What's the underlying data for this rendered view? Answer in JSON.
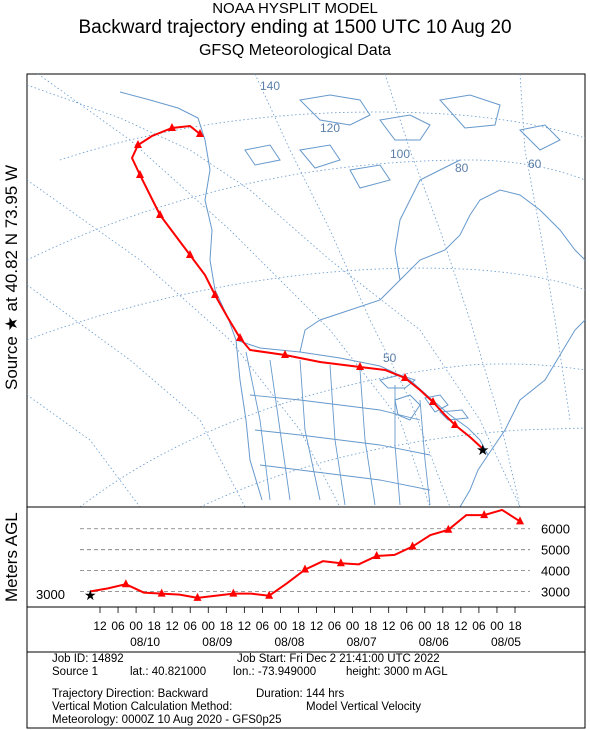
{
  "header": {
    "line1": "NOAA HYSPLIT MODEL",
    "line2": "Backward trajectory ending at 1500 UTC 10 Aug 20",
    "line3": "GFSQ Meteorological Data"
  },
  "side_label": "Source ★ at   40.82 N    73.95 W",
  "height_axis_label": "Meters AGL",
  "colors": {
    "trajectory": "#ff0000",
    "map_lines": "#6699cc",
    "grid": "#6699cc"
  },
  "map": {
    "lon_labels": [
      "140",
      "120",
      "100",
      "80",
      "60"
    ],
    "lat_labels": [
      "50"
    ]
  },
  "chart_data": {
    "type": "line",
    "title": "Backward trajectory ending at 1500 UTC 10 Aug 20",
    "ylabel": "Meters AGL",
    "x_ticks": [
      "12",
      "06",
      "00",
      "18",
      "12",
      "06",
      "00",
      "18",
      "12",
      "06",
      "00",
      "18",
      "12",
      "06",
      "00",
      "18",
      "12",
      "06",
      "00",
      "18",
      "12",
      "06",
      "00",
      "18"
    ],
    "date_labels": [
      "08/10",
      "08/09",
      "08/08",
      "08/07",
      "08/06",
      "08/05"
    ],
    "y_ticks": [
      3000,
      4000,
      5000,
      6000
    ],
    "ylim": [
      2500,
      6800
    ],
    "start_value_label": "3000",
    "series": [
      {
        "hours_back": [
          0,
          6,
          12,
          18,
          24,
          30,
          36,
          42,
          48,
          54,
          60,
          66,
          72,
          78,
          84,
          90,
          96,
          102,
          108,
          114,
          120,
          126,
          132,
          138,
          144
        ],
        "height_m": [
          3000,
          3150,
          3350,
          2950,
          2900,
          2850,
          2700,
          2800,
          2900,
          2900,
          2800,
          3400,
          4050,
          4450,
          4350,
          4300,
          4700,
          4750,
          5150,
          5700,
          5950,
          6650,
          6650,
          6900,
          6350
        ]
      }
    ]
  },
  "info": {
    "job_id": "Job ID: 14892",
    "job_start": "Job Start: Fri Dec  2 21:41:00 UTC 2022",
    "source": "Source 1",
    "lat": "lat.: 40.821000",
    "lon": "lon.: -73.949000",
    "height": "height: 3000 m AGL",
    "direction": "Trajectory Direction: Backward",
    "duration": "Duration: 144 hrs",
    "vertical_method": "Vertical Motion Calculation Method:",
    "vertical_value": "Model Vertical Velocity",
    "meteorology": "Meteorology: 0000Z 10 Aug 2020 - GFS0p25"
  }
}
